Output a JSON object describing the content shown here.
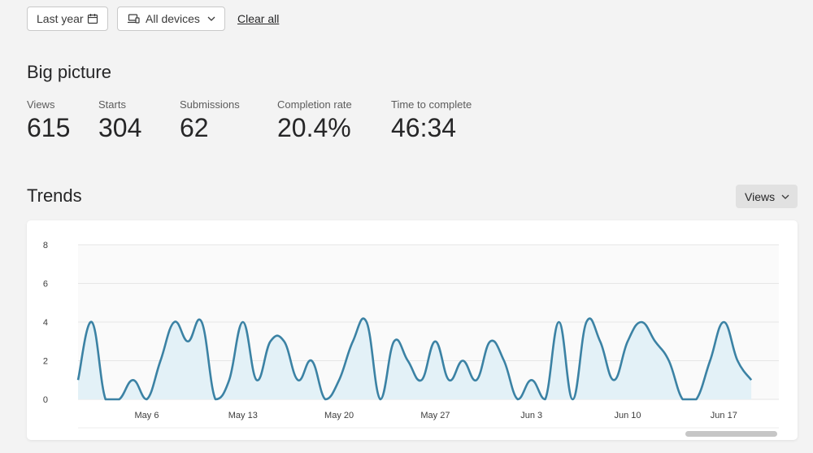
{
  "filters": {
    "date_range": "Last year",
    "device": "All devices",
    "clear_label": "Clear all"
  },
  "big_picture": {
    "title": "Big picture",
    "metrics": [
      {
        "label": "Views",
        "value": "615"
      },
      {
        "label": "Starts",
        "value": "304"
      },
      {
        "label": "Submissions",
        "value": "62"
      },
      {
        "label": "Completion rate",
        "value": "20.4%"
      },
      {
        "label": "Time to complete",
        "value": "46:34"
      }
    ]
  },
  "trends": {
    "title": "Trends",
    "metric_select": "Views"
  },
  "colors": {
    "line": "#3b82a4",
    "area": "#e3f1f7",
    "grid": "#e6e6e6"
  },
  "chart_data": {
    "type": "area",
    "x_start": "May 1",
    "x_end": "Jun 17",
    "ylim": [
      0,
      8
    ],
    "yticks": [
      0,
      2,
      4,
      6,
      8
    ],
    "xticks": [
      "May 6",
      "May 13",
      "May 20",
      "May 27",
      "Jun 3",
      "Jun 10",
      "Jun 17"
    ],
    "grid": true,
    "series": [
      {
        "values": [
          1,
          4,
          0,
          0,
          1,
          0,
          2,
          4,
          3,
          4,
          0,
          1,
          4,
          1,
          3,
          3,
          1,
          2,
          0,
          1,
          3,
          4,
          0,
          3,
          2,
          1,
          3,
          1,
          2,
          1,
          3,
          2,
          0,
          1,
          0,
          4,
          0,
          4,
          3,
          1,
          3,
          4,
          3,
          2,
          0,
          0,
          2,
          4,
          2,
          1
        ]
      }
    ]
  }
}
